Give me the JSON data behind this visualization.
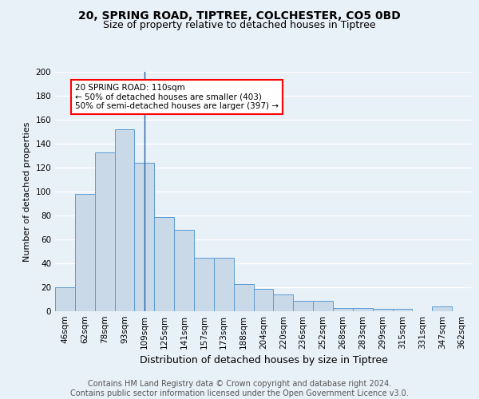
{
  "title1": "20, SPRING ROAD, TIPTREE, COLCHESTER, CO5 0BD",
  "title2": "Size of property relative to detached houses in Tiptree",
  "xlabel": "Distribution of detached houses by size in Tiptree",
  "ylabel": "Number of detached properties",
  "bar_labels": [
    "46sqm",
    "62sqm",
    "78sqm",
    "93sqm",
    "109sqm",
    "125sqm",
    "141sqm",
    "157sqm",
    "173sqm",
    "188sqm",
    "204sqm",
    "220sqm",
    "236sqm",
    "252sqm",
    "268sqm",
    "283sqm",
    "299sqm",
    "315sqm",
    "331sqm",
    "347sqm",
    "362sqm"
  ],
  "bar_values": [
    20,
    98,
    133,
    152,
    124,
    79,
    68,
    45,
    45,
    23,
    19,
    14,
    9,
    9,
    3,
    3,
    2,
    2,
    0,
    4,
    0
  ],
  "bar_color": "#c9d9e8",
  "bar_edge_color": "#5b9bd5",
  "highlight_index": 4,
  "highlight_line_color": "#2060a0",
  "annotation_text": "20 SPRING ROAD: 110sqm\n← 50% of detached houses are smaller (403)\n50% of semi-detached houses are larger (397) →",
  "annotation_box_color": "white",
  "annotation_box_edge_color": "red",
  "footer_text": "Contains HM Land Registry data © Crown copyright and database right 2024.\nContains public sector information licensed under the Open Government Licence v3.0.",
  "ylim": [
    0,
    200
  ],
  "bg_color": "#e8f0f8",
  "plot_bg_color": "#e8f0f8",
  "grid_color": "white",
  "title1_fontsize": 10,
  "title2_fontsize": 9,
  "xlabel_fontsize": 9,
  "ylabel_fontsize": 8,
  "tick_fontsize": 7.5,
  "footer_fontsize": 7
}
